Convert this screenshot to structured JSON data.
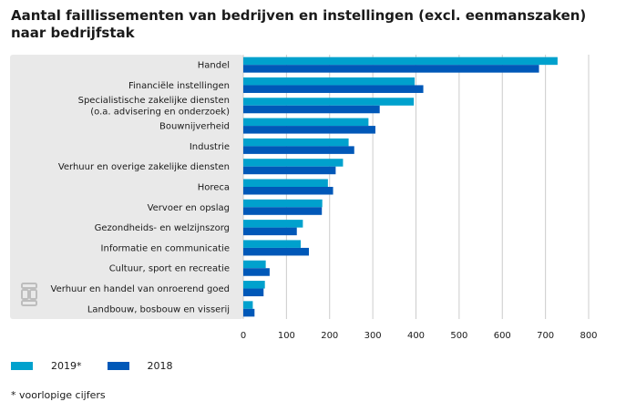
{
  "title_line1": "Aantal faillissementen van bedrijven en instellingen (excl. eenmanszaken)",
  "title_line2": "naar bedrijfstak",
  "footnote": "* voorlopige cijfers",
  "chart_data": {
    "type": "bar",
    "orientation": "horizontal",
    "categories": [
      [
        "Handel"
      ],
      [
        "Financiële instellingen"
      ],
      [
        "Specialistische zakelijke diensten",
        "(o.a. advisering en onderzoek)"
      ],
      [
        "Bouwnijverheid"
      ],
      [
        "Industrie"
      ],
      [
        "Verhuur en overige zakelijke diensten"
      ],
      [
        "Horeca"
      ],
      [
        "Vervoer en opslag"
      ],
      [
        "Gezondheids- en welzijnszorg"
      ],
      [
        "Informatie en communicatie"
      ],
      [
        "Cultuur, sport en recreatie"
      ],
      [
        "Verhuur en handel van onroerend goed"
      ],
      [
        "Landbouw, bosbouw en visserij"
      ]
    ],
    "series": [
      {
        "name": "2019*",
        "color": "#00a1cd",
        "values": [
          728,
          397,
          395,
          290,
          244,
          231,
          196,
          183,
          138,
          133,
          52,
          50,
          22
        ]
      },
      {
        "name": "2018",
        "color": "#0058b8",
        "values": [
          685,
          417,
          316,
          306,
          257,
          214,
          208,
          182,
          124,
          152,
          61,
          47,
          26
        ]
      }
    ],
    "xlim": [
      0,
      800
    ],
    "xticks": [
      0,
      100,
      200,
      300,
      400,
      500,
      600,
      700,
      800
    ],
    "legend_position": "bottom-left",
    "grid": true
  },
  "colors": {
    "panel": "#e9e9e9",
    "grid": "#cccccc",
    "logo": "#bdbdbd"
  },
  "icons": {
    "logo": "cbs-logo-icon"
  }
}
